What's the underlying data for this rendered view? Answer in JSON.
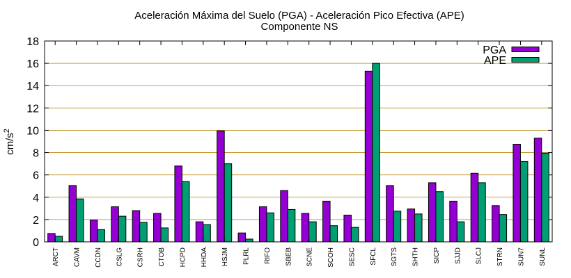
{
  "chart_data": {
    "type": "bar",
    "title": "Aceleración Máxima del Suelo (PGA) -  Aceleración Pico Efectiva (APE)",
    "subtitle": "Componente NS",
    "ylabel_base": "cm/s",
    "ylabel_sup": "2",
    "xlabel": "",
    "ylim": [
      0,
      18
    ],
    "yticks": [
      0,
      2,
      4,
      6,
      8,
      10,
      12,
      14,
      16,
      18
    ],
    "grid": true,
    "legend_position": "top-right",
    "categories": [
      "ARCT",
      "CAVM",
      "CCDN",
      "CSLG",
      "CSRH",
      "CTOB",
      "HCPD",
      "HHDA",
      "HSJM",
      "PLRL",
      "RIFO",
      "SBEB",
      "SCNE",
      "SCOH",
      "SESC",
      "SFCL",
      "SGTS",
      "SHTH",
      "SICP",
      "SJJD",
      "SLCJ",
      "STRN",
      "SUN7",
      "SUNL"
    ],
    "series": [
      {
        "name": "PGA",
        "color": "#9400d3",
        "values": [
          0.75,
          5.05,
          1.95,
          3.15,
          2.8,
          2.55,
          6.8,
          1.8,
          9.95,
          0.8,
          3.15,
          4.6,
          2.55,
          3.65,
          2.4,
          15.3,
          5.05,
          2.95,
          5.3,
          3.65,
          6.15,
          3.25,
          8.75,
          9.3
        ]
      },
      {
        "name": "APE",
        "color": "#009e73",
        "values": [
          0.5,
          3.85,
          1.1,
          2.3,
          1.75,
          1.25,
          5.4,
          1.55,
          7.0,
          0.25,
          2.6,
          2.9,
          1.8,
          1.45,
          1.3,
          16.0,
          2.75,
          2.5,
          4.5,
          1.8,
          5.3,
          2.45,
          7.2,
          7.95
        ]
      }
    ]
  }
}
